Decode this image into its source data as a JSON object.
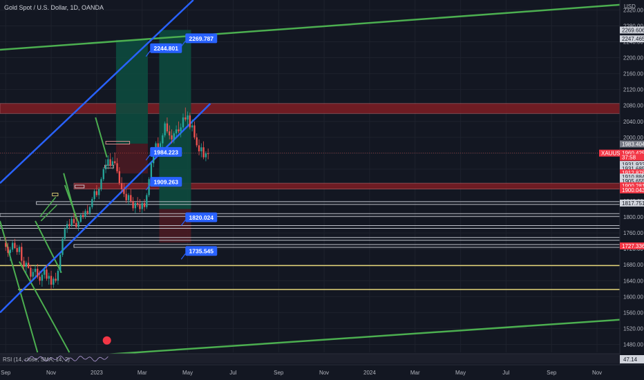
{
  "header": {
    "title": "Gold Spot / U.S. Dollar, 1D, OANDA",
    "currency": "USD"
  },
  "colors": {
    "background": "#131722",
    "up": "#26a69a",
    "down": "#ef5350",
    "channel": "#2962ff",
    "trend": "#4caf50",
    "zone": "#7f1d24",
    "profit": "#0d4a3e",
    "loss": "#4a1a22",
    "callout": "#2962ff"
  },
  "chart_data": {
    "type": "candlestick",
    "symbol": "XAUUSD",
    "ylim": [
      1460,
      2345
    ],
    "y_ticks": [
      2320,
      2280,
      2240,
      2200,
      2160,
      2120,
      2080,
      2040,
      2000,
      1960,
      1920,
      1880,
      1840,
      1800,
      1760,
      1720,
      1680,
      1640,
      1600,
      1560,
      1520,
      1480
    ],
    "x_ticks": [
      {
        "label": "Sep",
        "x": 0
      },
      {
        "label": "Nov",
        "x": 2
      },
      {
        "label": "2023",
        "x": 4
      },
      {
        "label": "Mar",
        "x": 6
      },
      {
        "label": "May",
        "x": 8
      },
      {
        "label": "Jul",
        "x": 10
      },
      {
        "label": "Sep",
        "x": 12
      },
      {
        "label": "Nov",
        "x": 14
      },
      {
        "label": "2024",
        "x": 16
      },
      {
        "label": "Mar",
        "x": 18
      },
      {
        "label": "May",
        "x": 20
      },
      {
        "label": "Jul",
        "x": 22
      },
      {
        "label": "Sep",
        "x": 24
      },
      {
        "label": "Nov",
        "x": 26
      }
    ],
    "xlim": [
      -0.25,
      27
    ],
    "candles": [
      [
        0.0,
        1735,
        1750,
        1715,
        1725
      ],
      [
        0.1,
        1725,
        1735,
        1700,
        1710
      ],
      [
        0.2,
        1710,
        1725,
        1690,
        1718
      ],
      [
        0.3,
        1718,
        1740,
        1712,
        1735
      ],
      [
        0.4,
        1735,
        1745,
        1720,
        1722
      ],
      [
        0.5,
        1722,
        1730,
        1705,
        1712
      ],
      [
        0.6,
        1712,
        1730,
        1705,
        1725
      ],
      [
        0.7,
        1725,
        1735,
        1680,
        1690
      ],
      [
        0.8,
        1690,
        1700,
        1665,
        1675
      ],
      [
        0.9,
        1675,
        1690,
        1660,
        1685
      ],
      [
        1.0,
        1685,
        1700,
        1670,
        1672
      ],
      [
        1.1,
        1672,
        1680,
        1640,
        1650
      ],
      [
        1.2,
        1650,
        1670,
        1640,
        1662
      ],
      [
        1.3,
        1662,
        1680,
        1650,
        1670
      ],
      [
        1.4,
        1670,
        1682,
        1645,
        1650
      ],
      [
        1.5,
        1650,
        1665,
        1630,
        1640
      ],
      [
        1.6,
        1640,
        1660,
        1625,
        1655
      ],
      [
        1.7,
        1655,
        1675,
        1645,
        1668
      ],
      [
        1.8,
        1668,
        1680,
        1640,
        1645
      ],
      [
        1.9,
        1645,
        1660,
        1630,
        1652
      ],
      [
        2.0,
        1652,
        1665,
        1618,
        1630
      ],
      [
        2.1,
        1630,
        1650,
        1622,
        1645
      ],
      [
        2.2,
        1645,
        1660,
        1635,
        1640
      ],
      [
        2.3,
        1640,
        1670,
        1630,
        1665
      ],
      [
        2.4,
        1665,
        1710,
        1660,
        1705
      ],
      [
        2.5,
        1705,
        1750,
        1700,
        1745
      ],
      [
        2.6,
        1745,
        1775,
        1740,
        1770
      ],
      [
        2.7,
        1770,
        1790,
        1760,
        1782
      ],
      [
        2.8,
        1782,
        1795,
        1770,
        1778
      ],
      [
        2.9,
        1778,
        1800,
        1775,
        1795
      ],
      [
        3.0,
        1795,
        1810,
        1780,
        1785
      ],
      [
        3.1,
        1785,
        1800,
        1770,
        1775
      ],
      [
        3.2,
        1775,
        1790,
        1765,
        1788
      ],
      [
        3.3,
        1788,
        1810,
        1785,
        1805
      ],
      [
        3.4,
        1805,
        1815,
        1795,
        1800
      ],
      [
        3.5,
        1800,
        1820,
        1795,
        1815
      ],
      [
        3.6,
        1815,
        1830,
        1805,
        1810
      ],
      [
        3.7,
        1810,
        1828,
        1805,
        1825
      ],
      [
        3.8,
        1825,
        1850,
        1820,
        1845
      ],
      [
        3.9,
        1845,
        1870,
        1840,
        1865
      ],
      [
        4.0,
        1865,
        1880,
        1850,
        1855
      ],
      [
        4.1,
        1855,
        1875,
        1845,
        1870
      ],
      [
        4.2,
        1870,
        1900,
        1865,
        1895
      ],
      [
        4.3,
        1895,
        1925,
        1890,
        1920
      ],
      [
        4.4,
        1920,
        1945,
        1910,
        1930
      ],
      [
        4.5,
        1930,
        1955,
        1920,
        1945
      ],
      [
        4.6,
        1945,
        1960,
        1925,
        1930
      ],
      [
        4.7,
        1930,
        1950,
        1920,
        1940
      ],
      [
        4.8,
        1940,
        1962,
        1930,
        1935
      ],
      [
        4.9,
        1935,
        1948,
        1910,
        1915
      ],
      [
        5.0,
        1915,
        1925,
        1880,
        1885
      ],
      [
        5.1,
        1885,
        1900,
        1860,
        1870
      ],
      [
        5.2,
        1870,
        1885,
        1850,
        1858
      ],
      [
        5.3,
        1858,
        1870,
        1835,
        1842
      ],
      [
        5.4,
        1842,
        1860,
        1830,
        1855
      ],
      [
        5.5,
        1855,
        1870,
        1835,
        1840
      ],
      [
        5.6,
        1840,
        1850,
        1815,
        1822
      ],
      [
        5.7,
        1822,
        1840,
        1810,
        1835
      ],
      [
        5.8,
        1835,
        1850,
        1825,
        1830
      ],
      [
        5.9,
        1830,
        1845,
        1812,
        1820
      ],
      [
        6.0,
        1820,
        1840,
        1810,
        1835
      ],
      [
        6.1,
        1835,
        1845,
        1815,
        1825
      ],
      [
        6.2,
        1825,
        1860,
        1820,
        1855
      ],
      [
        6.3,
        1855,
        1900,
        1850,
        1895
      ],
      [
        6.4,
        1895,
        1940,
        1890,
        1935
      ],
      [
        6.5,
        1935,
        1965,
        1925,
        1960
      ],
      [
        6.6,
        1960,
        1990,
        1955,
        1985
      ],
      [
        6.7,
        1985,
        2000,
        1965,
        1970
      ],
      [
        6.8,
        1970,
        1990,
        1960,
        1985
      ],
      [
        6.9,
        1985,
        2010,
        1975,
        2005
      ],
      [
        7.0,
        2005,
        2040,
        2000,
        2035
      ],
      [
        7.1,
        2035,
        2050,
        2010,
        2015
      ],
      [
        7.2,
        2015,
        2030,
        1995,
        2005
      ],
      [
        7.3,
        2005,
        2020,
        1985,
        1995
      ],
      [
        7.4,
        1995,
        2015,
        1985,
        2010
      ],
      [
        7.5,
        2010,
        2030,
        2000,
        2020
      ],
      [
        7.6,
        2020,
        2040,
        2010,
        2015
      ],
      [
        7.7,
        2015,
        2035,
        2000,
        2025
      ],
      [
        7.8,
        2025,
        2060,
        2020,
        2050
      ],
      [
        7.9,
        2050,
        2075,
        2040,
        2045
      ],
      [
        8.0,
        2045,
        2065,
        2030,
        2055
      ],
      [
        8.1,
        2055,
        2062,
        2020,
        2025
      ],
      [
        8.2,
        2025,
        2045,
        2015,
        2030
      ],
      [
        8.3,
        2030,
        2040,
        1995,
        2000
      ],
      [
        8.4,
        2000,
        2010,
        1975,
        1980
      ],
      [
        8.5,
        1980,
        1995,
        1955,
        1965
      ],
      [
        8.6,
        1965,
        1985,
        1950,
        1975
      ],
      [
        8.7,
        1975,
        1990,
        1945,
        1950
      ],
      [
        8.8,
        1950,
        1965,
        1940,
        1960
      ],
      [
        8.9,
        1960,
        1972,
        1945,
        1958
      ]
    ],
    "annotations": [
      {
        "price": 2244.801,
        "label": "2244.801",
        "x": 6.35
      },
      {
        "price": 2269.787,
        "label": "2269.787",
        "x": 7.9
      },
      {
        "price": 1984.223,
        "label": "1984.223",
        "x": 6.35
      },
      {
        "price": 1909.263,
        "label": "1909.263",
        "x": 6.35
      },
      {
        "price": 1820.024,
        "label": "1820.024",
        "x": 7.9
      },
      {
        "price": 1735.545,
        "label": "1735.545",
        "x": 7.9
      }
    ],
    "price_badges": [
      {
        "value": "2269.606",
        "price": 2269.6,
        "style": "light"
      },
      {
        "value": "2247.465",
        "price": 2247.5,
        "style": "light"
      },
      {
        "value": "1983.404",
        "price": 1983.4,
        "style": "gray"
      },
      {
        "value": "XAUUSD",
        "price": 1960.4,
        "style": "red",
        "left": true
      },
      {
        "value": "1960.425",
        "price": 1960.4,
        "style": "red"
      },
      {
        "value": "37:58",
        "price": 1950.0,
        "style": "red"
      },
      {
        "value": "1931.933",
        "price": 1931.9,
        "style": "light"
      },
      {
        "value": "1931.685",
        "price": 1921.5,
        "style": "light"
      },
      {
        "value": "1912.878",
        "price": 1911.0,
        "style": "red"
      },
      {
        "value": "1910.884",
        "price": 1900.5,
        "style": "light"
      },
      {
        "value": "1905.655",
        "price": 1890.0,
        "style": "light"
      },
      {
        "value": "1900.281",
        "price": 1878.5,
        "style": "red"
      },
      {
        "value": "1900.043",
        "price": 1868.0,
        "style": "red"
      },
      {
        "value": "1817.751",
        "price": 1835.0,
        "style": "light"
      },
      {
        "value": "1727.336",
        "price": 1727.3,
        "style": "red"
      }
    ],
    "indicator": {
      "label": "RSI (14, close, SMA, 14, 2)",
      "value": "47.14"
    }
  }
}
